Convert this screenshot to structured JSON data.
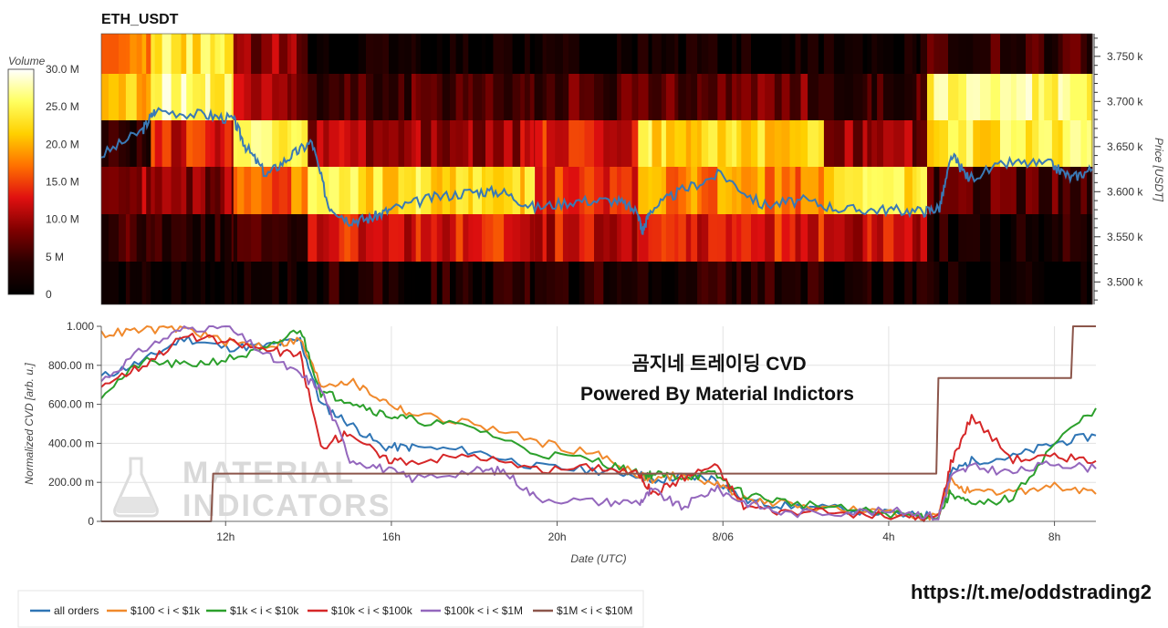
{
  "chart_data": [
    {
      "type": "heatmap",
      "title": "ETH_USDT",
      "ylabel": "Price [USDT]",
      "colorbar": {
        "title": "Volume",
        "range": [
          0,
          30000000
        ],
        "ticks": [
          "0",
          "5 M",
          "10.0 M",
          "15.0 M",
          "20.0 M",
          "25.0 M",
          "30.0 M"
        ],
        "colors": [
          "#000000",
          "#2a0000",
          "#800000",
          "#e01010",
          "#ff7000",
          "#ffd000",
          "#ffff60",
          "#ffffff"
        ]
      },
      "y_range": [
        3475,
        3775
      ],
      "y_ticks": [
        "3.500 k",
        "3.550 k",
        "3.600 k",
        "3.650 k",
        "3.700 k",
        "3.750 k"
      ],
      "price_bins": [
        3500,
        3550,
        3600,
        3650,
        3700,
        3750
      ],
      "x_range_hours": [
        9.0,
        33.0
      ],
      "volume_profile": [
        {
          "t0": 9.0,
          "t1": 10.2,
          "levels": [
            1,
            5,
            10,
            4,
            20,
            19
          ]
        },
        {
          "t0": 10.2,
          "t1": 12.2,
          "levels": [
            1,
            4,
            9,
            13,
            26,
            24
          ]
        },
        {
          "t0": 12.2,
          "t1": 14.0,
          "levels": [
            1,
            4,
            17,
            25,
            10,
            9
          ]
        },
        {
          "t0": 14.0,
          "t1": 19.5,
          "levels": [
            3,
            13,
            23,
            10,
            6,
            1
          ]
        },
        {
          "t0": 19.5,
          "t1": 22.0,
          "levels": [
            3,
            12,
            14,
            13,
            6,
            1
          ]
        },
        {
          "t0": 22.0,
          "t1": 26.5,
          "levels": [
            3,
            13,
            18,
            23,
            7,
            1
          ]
        },
        {
          "t0": 26.5,
          "t1": 29.0,
          "levels": [
            2,
            12,
            23,
            9,
            5,
            1
          ]
        },
        {
          "t0": 29.0,
          "t1": 33.0,
          "levels": [
            1,
            3,
            6,
            24,
            26,
            5
          ]
        }
      ],
      "price_series": {
        "name": "Price",
        "color": "#3a79b5",
        "t": [
          9.0,
          10.0,
          10.3,
          11.5,
          12.2,
          12.5,
          13.0,
          13.6,
          14.1,
          14.5,
          15.0,
          15.5,
          16.0,
          17.0,
          18.0,
          18.7,
          19.5,
          20.5,
          21.5,
          22.0,
          22.1,
          22.3,
          23.0,
          24.0,
          25.0,
          26.0,
          27.0,
          28.0,
          28.9,
          29.3,
          29.6,
          30.0,
          31.0,
          32.0,
          32.5,
          33.0
        ],
        "price": [
          3640,
          3668,
          3690,
          3685,
          3680,
          3650,
          3618,
          3640,
          3655,
          3585,
          3568,
          3570,
          3580,
          3593,
          3600,
          3600,
          3582,
          3590,
          3590,
          3577,
          3555,
          3580,
          3600,
          3620,
          3585,
          3590,
          3580,
          3580,
          3578,
          3582,
          3640,
          3615,
          3632,
          3630,
          3615,
          3625
        ]
      }
    },
    {
      "type": "line",
      "title": "",
      "xlabel": "Date (UTC)",
      "ylabel": "Normalized CVD [arb. u.]",
      "ylim": [
        0,
        1.0
      ],
      "y_ticks": [
        "0",
        "200.00 m",
        "400.00 m",
        "600.00 m",
        "800.00 m",
        "1.000"
      ],
      "x_range_hours": [
        9.0,
        33.0
      ],
      "x_ticks": [
        {
          "hour": 12,
          "label": "12h"
        },
        {
          "hour": 16,
          "label": "16h"
        },
        {
          "hour": 20,
          "label": "20h"
        },
        {
          "hour": 24,
          "label": "8/06"
        },
        {
          "hour": 28,
          "label": "4h"
        },
        {
          "hour": 32,
          "label": "8h"
        }
      ],
      "annotation": [
        "곰지네 트레이딩 CVD",
        "Powered By Material Indictors"
      ],
      "watermark": [
        "MATERIAL",
        "INDICATORS"
      ],
      "series": [
        {
          "name": "all orders",
          "color": "#2f75b5",
          "t": [
            9,
            10,
            11,
            12,
            13,
            13.8,
            14.3,
            15,
            15.8,
            16.5,
            18,
            19.5,
            21,
            22,
            22.3,
            23,
            23.8,
            24.5,
            25.5,
            27,
            28.5,
            29.2,
            29.5,
            30,
            31,
            32,
            33
          ],
          "values": [
            0.74,
            0.82,
            0.94,
            0.89,
            0.9,
            0.93,
            0.6,
            0.5,
            0.38,
            0.38,
            0.36,
            0.28,
            0.26,
            0.24,
            0.2,
            0.23,
            0.22,
            0.11,
            0.08,
            0.06,
            0.03,
            0.03,
            0.25,
            0.31,
            0.33,
            0.4,
            0.44
          ]
        },
        {
          "name": "$100 < i < $1k",
          "color": "#f0892c",
          "t": [
            9,
            10,
            11,
            12,
            13,
            13.8,
            14.3,
            15,
            15.8,
            16.5,
            18,
            19.5,
            21,
            22,
            22.3,
            23,
            23.8,
            24.5,
            25.5,
            27,
            28.5,
            29.2,
            29.5,
            30,
            31,
            32,
            33
          ],
          "values": [
            0.96,
            0.98,
            0.99,
            0.92,
            0.9,
            0.93,
            0.7,
            0.72,
            0.62,
            0.55,
            0.5,
            0.41,
            0.34,
            0.24,
            0.21,
            0.24,
            0.2,
            0.11,
            0.09,
            0.06,
            0.03,
            0.03,
            0.21,
            0.14,
            0.15,
            0.18,
            0.14
          ]
        },
        {
          "name": "$1k < i < $10k",
          "color": "#2ca02c",
          "t": [
            9,
            10,
            11,
            12,
            13,
            13.8,
            14.3,
            15,
            15.8,
            16.5,
            18,
            19.5,
            21,
            22,
            22.3,
            23,
            23.8,
            24.5,
            25.5,
            27,
            28.5,
            29.2,
            29.5,
            30,
            31,
            32,
            33
          ],
          "values": [
            0.65,
            0.82,
            0.8,
            0.83,
            0.88,
            0.99,
            0.66,
            0.62,
            0.55,
            0.52,
            0.48,
            0.35,
            0.31,
            0.24,
            0.24,
            0.23,
            0.24,
            0.14,
            0.1,
            0.06,
            0.03,
            0.03,
            0.15,
            0.08,
            0.12,
            0.4,
            0.58
          ]
        },
        {
          "name": "$10k < i < $100k",
          "color": "#d62728",
          "t": [
            9,
            10,
            11,
            12,
            13,
            13.8,
            14.3,
            15,
            15.8,
            16.5,
            18,
            19.5,
            21,
            22,
            22.3,
            23,
            23.8,
            24.5,
            25.5,
            27,
            28.5,
            29.2,
            29.5,
            30,
            31,
            32,
            33
          ],
          "values": [
            0.7,
            0.8,
            0.95,
            0.92,
            0.88,
            0.85,
            0.38,
            0.46,
            0.32,
            0.31,
            0.34,
            0.26,
            0.28,
            0.24,
            0.14,
            0.22,
            0.29,
            0.08,
            0.05,
            0.04,
            0.02,
            0.02,
            0.3,
            0.54,
            0.32,
            0.33,
            0.31
          ]
        },
        {
          "name": "$100k < i < $1M",
          "color": "#9467bd",
          "t": [
            9,
            10,
            11,
            12,
            13,
            13.8,
            14.3,
            15,
            15.8,
            16.5,
            18,
            18.7,
            19.5,
            21,
            22,
            22.3,
            23,
            23.8,
            24.5,
            25.5,
            27,
            28.5,
            29.2,
            29.5,
            30,
            31,
            32,
            33
          ],
          "values": [
            0.72,
            0.88,
            0.99,
            1.0,
            0.85,
            0.75,
            0.68,
            0.32,
            0.27,
            0.22,
            0.26,
            0.26,
            0.12,
            0.1,
            0.1,
            0.16,
            0.07,
            0.17,
            0.1,
            0.04,
            0.05,
            0.05,
            0.02,
            0.23,
            0.28,
            0.25,
            0.3,
            0.27
          ]
        },
        {
          "name": "$1M < i < $10M",
          "color": "#8c564b",
          "t": [
            9,
            11.65,
            11.7,
            22.15,
            22.2,
            29.15,
            29.2,
            32.4,
            32.45,
            33
          ],
          "values": [
            0,
            0,
            0.245,
            0.245,
            0.245,
            0.245,
            0.735,
            0.735,
            1.0,
            1.0
          ]
        }
      ]
    }
  ],
  "footer": {
    "url": "https://t.me/oddstrading2"
  }
}
